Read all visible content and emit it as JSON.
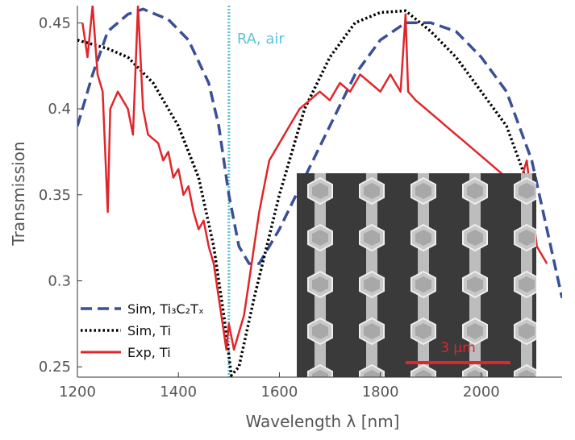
{
  "chart_data": {
    "type": "line",
    "xlabel": "Wavelength  λ [nm]",
    "ylabel": "Transmission",
    "xlim": [
      1200,
      2160
    ],
    "ylim": [
      0.244,
      0.46
    ],
    "xticks": [
      1200,
      1400,
      1600,
      1800,
      2000
    ],
    "yticks": [
      0.25,
      0.3,
      0.35,
      0.4,
      0.45
    ],
    "legend": "lower left",
    "annotations": [
      {
        "x": 1500,
        "text": "RA, air",
        "color": "#5bc4d6"
      }
    ],
    "inset_scale_label": "3 μm",
    "series": [
      {
        "name": "Sim, Ti₃C₂Tₓ",
        "color": "#3a4f96",
        "style": "dashed",
        "x": [
          1200,
          1230,
          1260,
          1300,
          1330,
          1380,
          1420,
          1460,
          1480,
          1500,
          1520,
          1540,
          1560,
          1600,
          1650,
          1700,
          1750,
          1800,
          1850,
          1900,
          1950,
          2000,
          2050,
          2100,
          2130,
          2160
        ],
        "values": [
          0.39,
          0.42,
          0.445,
          0.455,
          0.458,
          0.452,
          0.44,
          0.415,
          0.39,
          0.35,
          0.32,
          0.31,
          0.31,
          0.33,
          0.36,
          0.39,
          0.42,
          0.44,
          0.45,
          0.45,
          0.445,
          0.43,
          0.41,
          0.37,
          0.33,
          0.29
        ]
      },
      {
        "name": "Sim, Ti",
        "color": "#000000",
        "style": "dotted",
        "x": [
          1200,
          1260,
          1300,
          1350,
          1400,
          1440,
          1470,
          1490,
          1505,
          1520,
          1550,
          1600,
          1650,
          1700,
          1750,
          1800,
          1850,
          1900,
          1950,
          2000,
          2050,
          2100
        ],
        "values": [
          0.44,
          0.435,
          0.43,
          0.415,
          0.39,
          0.36,
          0.32,
          0.28,
          0.245,
          0.25,
          0.29,
          0.35,
          0.4,
          0.43,
          0.45,
          0.456,
          0.457,
          0.445,
          0.43,
          0.41,
          0.39,
          0.35
        ]
      },
      {
        "name": "Exp, Ti",
        "color": "#e0262b",
        "style": "solid",
        "x": [
          1210,
          1220,
          1230,
          1240,
          1250,
          1260,
          1265,
          1280,
          1300,
          1310,
          1320,
          1330,
          1340,
          1360,
          1370,
          1380,
          1390,
          1400,
          1410,
          1420,
          1430,
          1440,
          1450,
          1460,
          1470,
          1480,
          1490,
          1495,
          1500,
          1510,
          1520,
          1530,
          1540,
          1550,
          1560,
          1570,
          1580,
          1590,
          1600,
          1620,
          1640,
          1660,
          1680,
          1700,
          1720,
          1740,
          1760,
          1780,
          1800,
          1820,
          1840,
          1850,
          1855,
          1870,
          1890,
          1910,
          1930,
          1950,
          1970,
          1990,
          2010,
          2030,
          2050,
          2060,
          2070,
          2080,
          2090,
          2100,
          2110,
          2120,
          2130
        ],
        "values": [
          0.45,
          0.43,
          0.46,
          0.42,
          0.41,
          0.34,
          0.4,
          0.41,
          0.4,
          0.385,
          0.46,
          0.4,
          0.385,
          0.38,
          0.37,
          0.375,
          0.36,
          0.365,
          0.35,
          0.355,
          0.34,
          0.33,
          0.335,
          0.32,
          0.31,
          0.29,
          0.27,
          0.26,
          0.275,
          0.26,
          0.27,
          0.28,
          0.3,
          0.32,
          0.34,
          0.355,
          0.37,
          0.375,
          0.38,
          0.39,
          0.4,
          0.405,
          0.41,
          0.405,
          0.415,
          0.41,
          0.42,
          0.415,
          0.41,
          0.42,
          0.41,
          0.455,
          0.41,
          0.405,
          0.4,
          0.395,
          0.39,
          0.385,
          0.38,
          0.375,
          0.37,
          0.365,
          0.36,
          0.34,
          0.35,
          0.36,
          0.37,
          0.345,
          0.32,
          0.315,
          0.31
        ]
      }
    ]
  }
}
